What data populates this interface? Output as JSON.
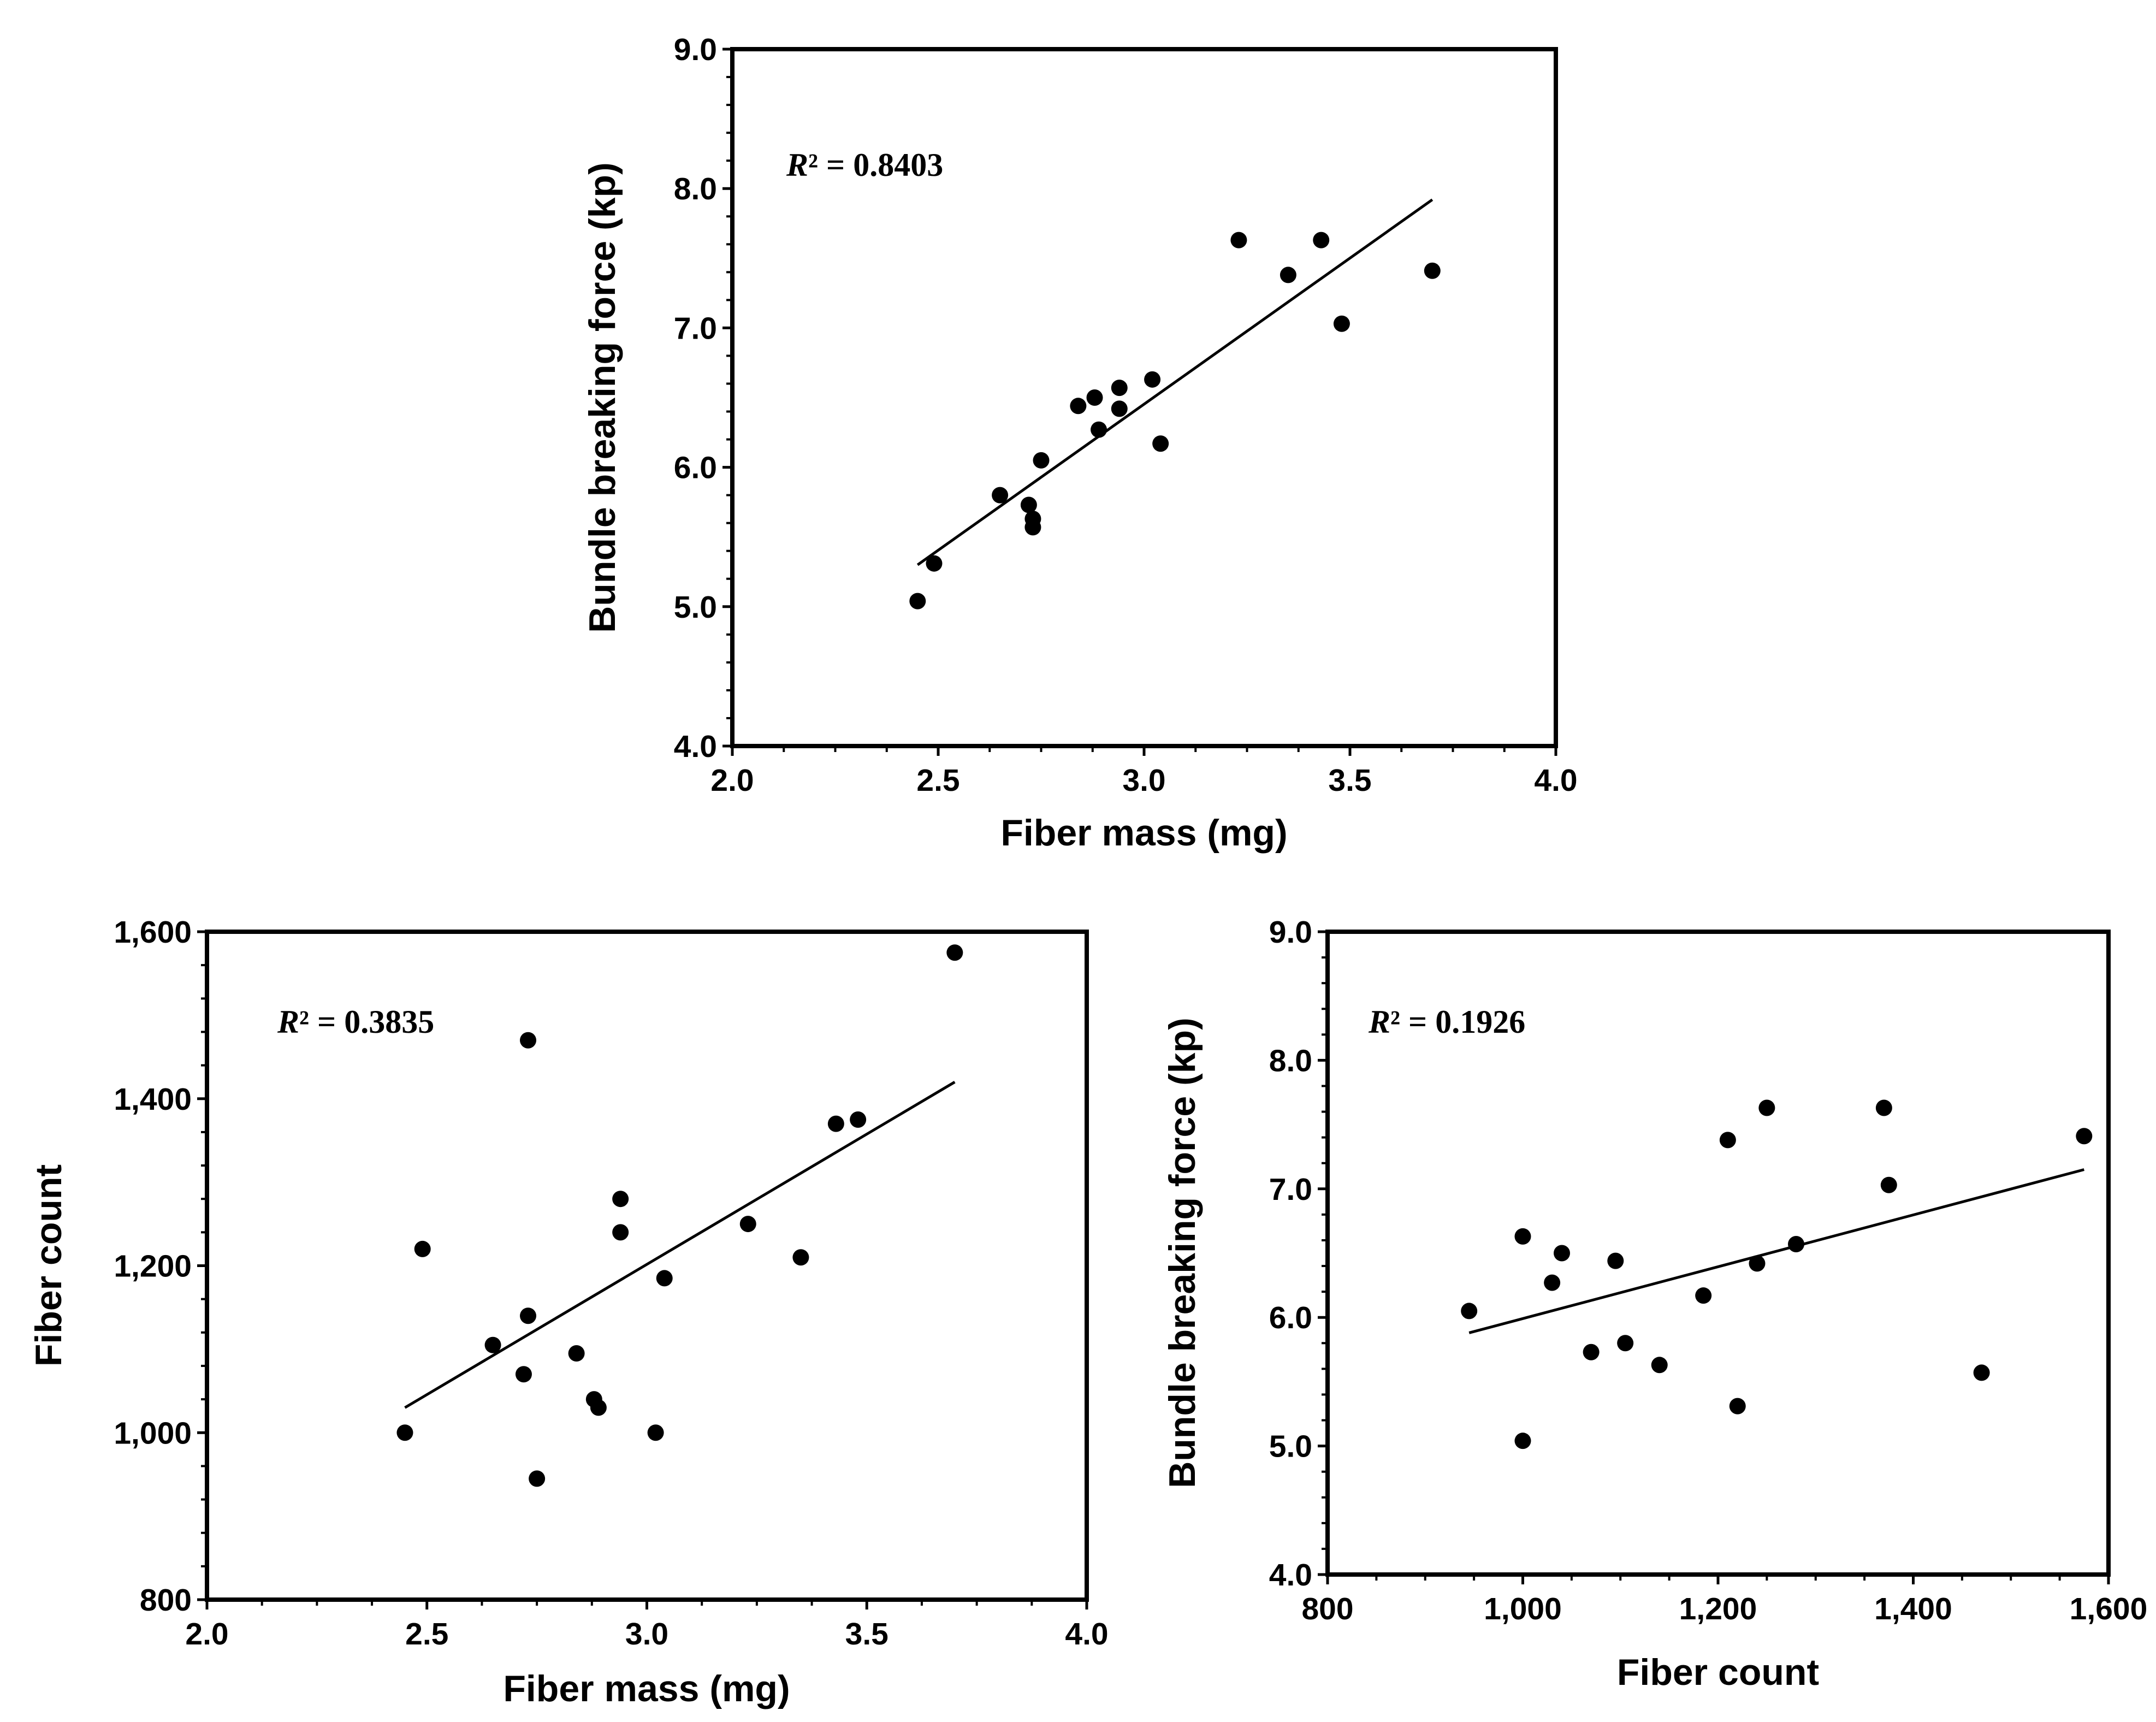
{
  "chart_data": [
    {
      "id": "mass-vs-force",
      "type": "scatter",
      "xlabel": "Fiber mass (mg)",
      "ylabel": "Bundle breaking force (kp)",
      "xlim": [
        2.0,
        4.0
      ],
      "ylim": [
        4.0,
        9.0
      ],
      "xticks": [
        2.0,
        2.5,
        3.0,
        3.5,
        4.0
      ],
      "xtick_labels": [
        "2.0",
        "2.5",
        "3.0",
        "3.5",
        "4.0"
      ],
      "yticks": [
        4.0,
        5.0,
        6.0,
        7.0,
        8.0,
        9.0
      ],
      "ytick_labels": [
        "4.0",
        "5.0",
        "6.0",
        "7.0",
        "8.0",
        "9.0"
      ],
      "r2_symbol": "R",
      "r2_text": "² = 0.8403",
      "trendline": {
        "x": [
          2.45,
          3.7
        ],
        "y": [
          5.3,
          7.92
        ]
      },
      "x": [
        2.45,
        2.49,
        2.65,
        2.72,
        2.73,
        2.73,
        2.75,
        2.84,
        2.88,
        2.89,
        2.94,
        2.94,
        3.02,
        3.04,
        3.23,
        3.35,
        3.43,
        3.48,
        3.7
      ],
      "y": [
        5.04,
        5.31,
        5.8,
        5.73,
        5.63,
        5.57,
        6.05,
        6.44,
        6.5,
        6.27,
        6.57,
        6.42,
        6.63,
        6.17,
        7.63,
        7.38,
        7.63,
        7.03,
        7.41
      ]
    },
    {
      "id": "mass-vs-count",
      "type": "scatter",
      "xlabel": "Fiber mass (mg)",
      "ylabel": "Fiber count",
      "xlim": [
        2.0,
        4.0
      ],
      "ylim": [
        800,
        1600
      ],
      "xticks": [
        2.0,
        2.5,
        3.0,
        3.5,
        4.0
      ],
      "xtick_labels": [
        "2.0",
        "2.5",
        "3.0",
        "3.5",
        "4.0"
      ],
      "yticks": [
        800,
        1000,
        1200,
        1400,
        1600
      ],
      "ytick_labels": [
        "800",
        "1,000",
        "1,200",
        "1,400",
        "1,600"
      ],
      "r2_symbol": "R",
      "r2_text": "² = 0.3835",
      "trendline": {
        "x": [
          2.45,
          3.7
        ],
        "y": [
          1030,
          1420
        ]
      },
      "x": [
        2.45,
        2.49,
        2.65,
        2.72,
        2.73,
        2.73,
        2.75,
        2.84,
        2.88,
        2.89,
        2.94,
        2.94,
        3.02,
        3.04,
        3.23,
        3.35,
        3.43,
        3.48,
        3.7
      ],
      "y": [
        1000,
        1220,
        1105,
        1070,
        1140,
        1470,
        945,
        1095,
        1040,
        1030,
        1240,
        1280,
        1000,
        1185,
        1250,
        1210,
        1370,
        1375,
        1575
      ]
    },
    {
      "id": "count-vs-force",
      "type": "scatter",
      "xlabel": "Fiber count",
      "ylabel": "Bundle breaking force (kp)",
      "xlim": [
        800,
        1600
      ],
      "ylim": [
        4.0,
        9.0
      ],
      "xticks": [
        800,
        1000,
        1200,
        1400,
        1600
      ],
      "xtick_labels": [
        "800",
        "1,000",
        "1,200",
        "1,400",
        "1,600"
      ],
      "yticks": [
        4.0,
        5.0,
        6.0,
        7.0,
        8.0,
        9.0
      ],
      "ytick_labels": [
        "4.0",
        "5.0",
        "6.0",
        "7.0",
        "8.0",
        "9.0"
      ],
      "r2_symbol": "R",
      "r2_text": "² = 0.1926",
      "trendline": {
        "x": [
          945,
          1575
        ],
        "y": [
          5.88,
          7.15
        ]
      },
      "x": [
        1000,
        1220,
        1105,
        1070,
        1140,
        1470,
        945,
        1095,
        1040,
        1030,
        1240,
        1280,
        1000,
        1185,
        1250,
        1210,
        1370,
        1375,
        1575
      ],
      "y": [
        5.04,
        5.31,
        5.8,
        5.73,
        5.63,
        5.57,
        6.05,
        6.44,
        6.5,
        6.27,
        6.42,
        6.57,
        6.63,
        6.17,
        7.63,
        7.38,
        7.63,
        7.03,
        7.41
      ]
    }
  ]
}
